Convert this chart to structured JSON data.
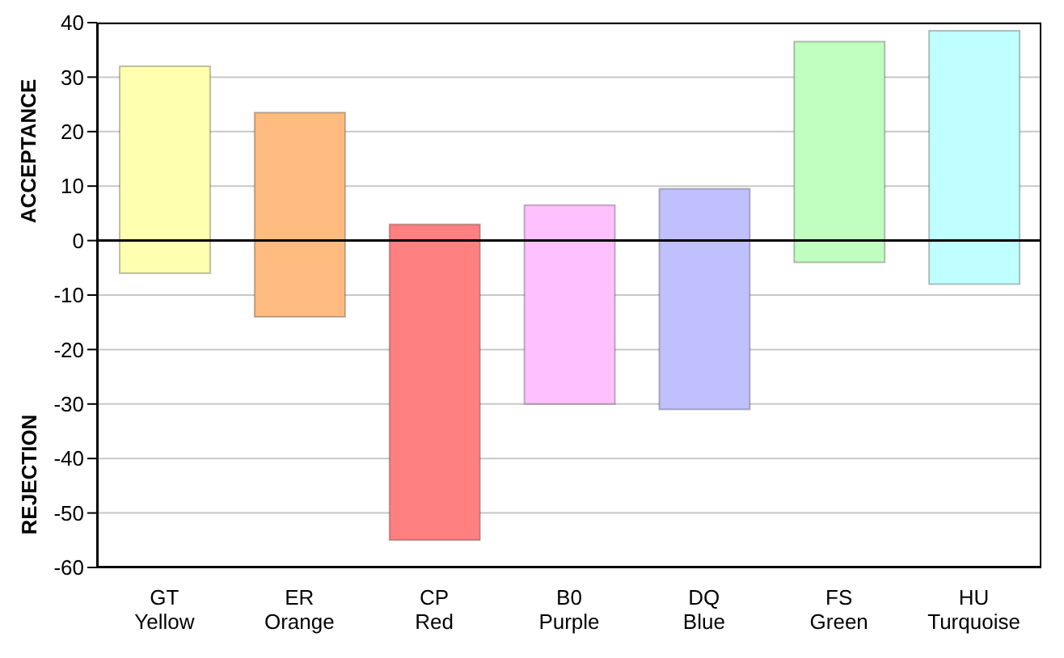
{
  "chart_data": {
    "type": "bar",
    "ylabel": "ACCEPTANCE",
    "annotations": [
      "REJECTION"
    ],
    "categories": [
      "GT\nYellow",
      "ER\nOrange",
      "CP\nRed",
      "B0\nPurple",
      "DQ\nBlue",
      "FS\nGreen",
      "HU\nTurquoise"
    ],
    "base": [
      -6,
      -14,
      -55,
      -30,
      -31,
      -4,
      -8
    ],
    "values": [
      38,
      37.5,
      58,
      36.5,
      40.5,
      40.5,
      46.5
    ],
    "colors": [
      "#ffffb0",
      "#ffbb80",
      "#ff8080",
      "#ffc0ff",
      "#c0c0ff",
      "#c0ffc0",
      "#c0ffff"
    ],
    "ylim": [
      -60,
      40
    ],
    "yticks": [
      -60,
      -50,
      -40,
      -30,
      -20,
      -10,
      0,
      10,
      20,
      30,
      40
    ],
    "grid": "y",
    "ref_lines": [
      {
        "axis": "y",
        "value": 0,
        "color": "#000000"
      }
    ]
  }
}
